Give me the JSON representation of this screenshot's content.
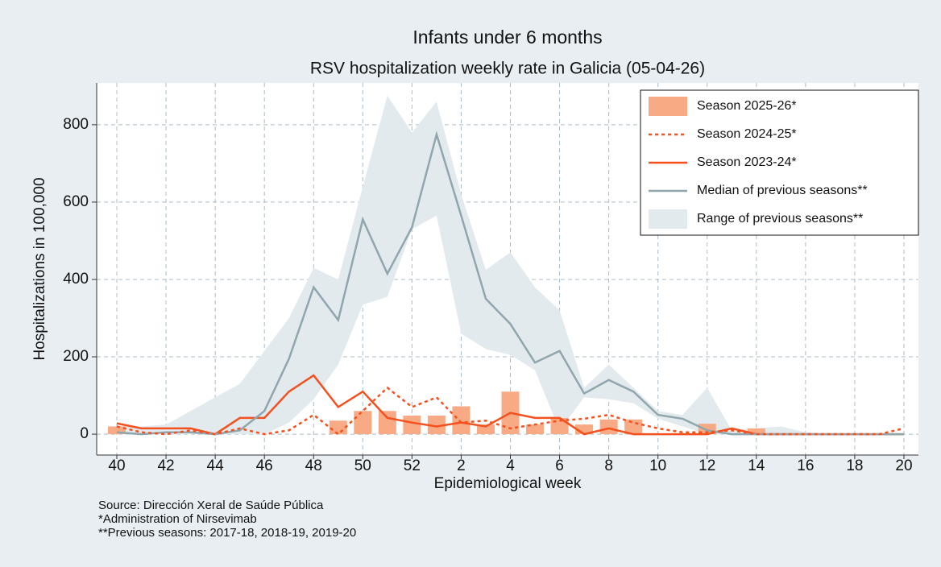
{
  "chart_data": {
    "type": "bar-line",
    "title": "Infants under 6 months",
    "subtitle": "RSV hospitalization weekly rate in Galicia (05-04-26)",
    "x_label": "Epidemiological week",
    "y_label": "Hospitalizations in 100,000",
    "categories": [
      40,
      null,
      42,
      null,
      44,
      null,
      46,
      null,
      48,
      null,
      50,
      null,
      52,
      null,
      2,
      null,
      4,
      null,
      6,
      null,
      8,
      null,
      10,
      null,
      12,
      null,
      14,
      null,
      16,
      null,
      18,
      null,
      20
    ],
    "ylim": [
      -54,
      908
    ],
    "yticks": [
      0,
      200,
      400,
      600,
      800
    ],
    "grid": true,
    "legend": "top-right",
    "series": [
      {
        "name": "Season 2025-26*",
        "kind": "bar",
        "color": "#f8aa84",
        "values": [
          20,
          0,
          0,
          0,
          0,
          0,
          0,
          0,
          0,
          35,
          60,
          60,
          48,
          48,
          72,
          25,
          110,
          25,
          42,
          25,
          38,
          38,
          0,
          0,
          27,
          0,
          15,
          null,
          null,
          null,
          null,
          null,
          null
        ]
      },
      {
        "name": "Season 2024-25*",
        "kind": "dotted",
        "color": "#f4511e",
        "values": [
          20,
          5,
          0,
          10,
          0,
          15,
          0,
          10,
          50,
          0,
          60,
          120,
          70,
          95,
          30,
          35,
          15,
          25,
          35,
          40,
          50,
          30,
          15,
          5,
          5,
          10,
          0,
          0,
          0,
          0,
          0,
          0,
          15
        ]
      },
      {
        "name": "Season 2023-24*",
        "kind": "line",
        "color": "#f4511e",
        "values": [
          28,
          15,
          15,
          15,
          0,
          42,
          42,
          110,
          152,
          70,
          110,
          42,
          30,
          20,
          30,
          20,
          55,
          42,
          42,
          0,
          15,
          0,
          0,
          0,
          0,
          15,
          0,
          0,
          0,
          0,
          0,
          0,
          0
        ]
      },
      {
        "name": "Median of previous seasons**",
        "kind": "line",
        "color": "#8fa6ad",
        "values": [
          5,
          0,
          5,
          5,
          0,
          10,
          60,
          195,
          380,
          295,
          555,
          415,
          535,
          775,
          565,
          350,
          285,
          185,
          215,
          105,
          140,
          110,
          50,
          40,
          10,
          0,
          0,
          0,
          0,
          0,
          0,
          0,
          0
        ]
      },
      {
        "name": "Range of previous seasons**",
        "kind": "range",
        "color": "#e3eaee",
        "upper": [
          20,
          20,
          25,
          60,
          95,
          130,
          215,
          300,
          430,
          400,
          640,
          875,
          780,
          860,
          620,
          425,
          470,
          380,
          320,
          120,
          180,
          120,
          60,
          50,
          120,
          10,
          15,
          20,
          5,
          0,
          0,
          0,
          0
        ],
        "lower": [
          0,
          0,
          0,
          0,
          0,
          0,
          0,
          30,
          90,
          180,
          335,
          355,
          530,
          565,
          260,
          220,
          205,
          165,
          10,
          95,
          90,
          80,
          40,
          20,
          0,
          0,
          0,
          0,
          0,
          0,
          0,
          0,
          0
        ]
      }
    ],
    "notes": [
      "Source: Dirección Xeral de Saúde Pública",
      "*Administration of Nirsevimab",
      "**Previous seasons: 2017-18, 2018-19, 2019-20"
    ]
  }
}
